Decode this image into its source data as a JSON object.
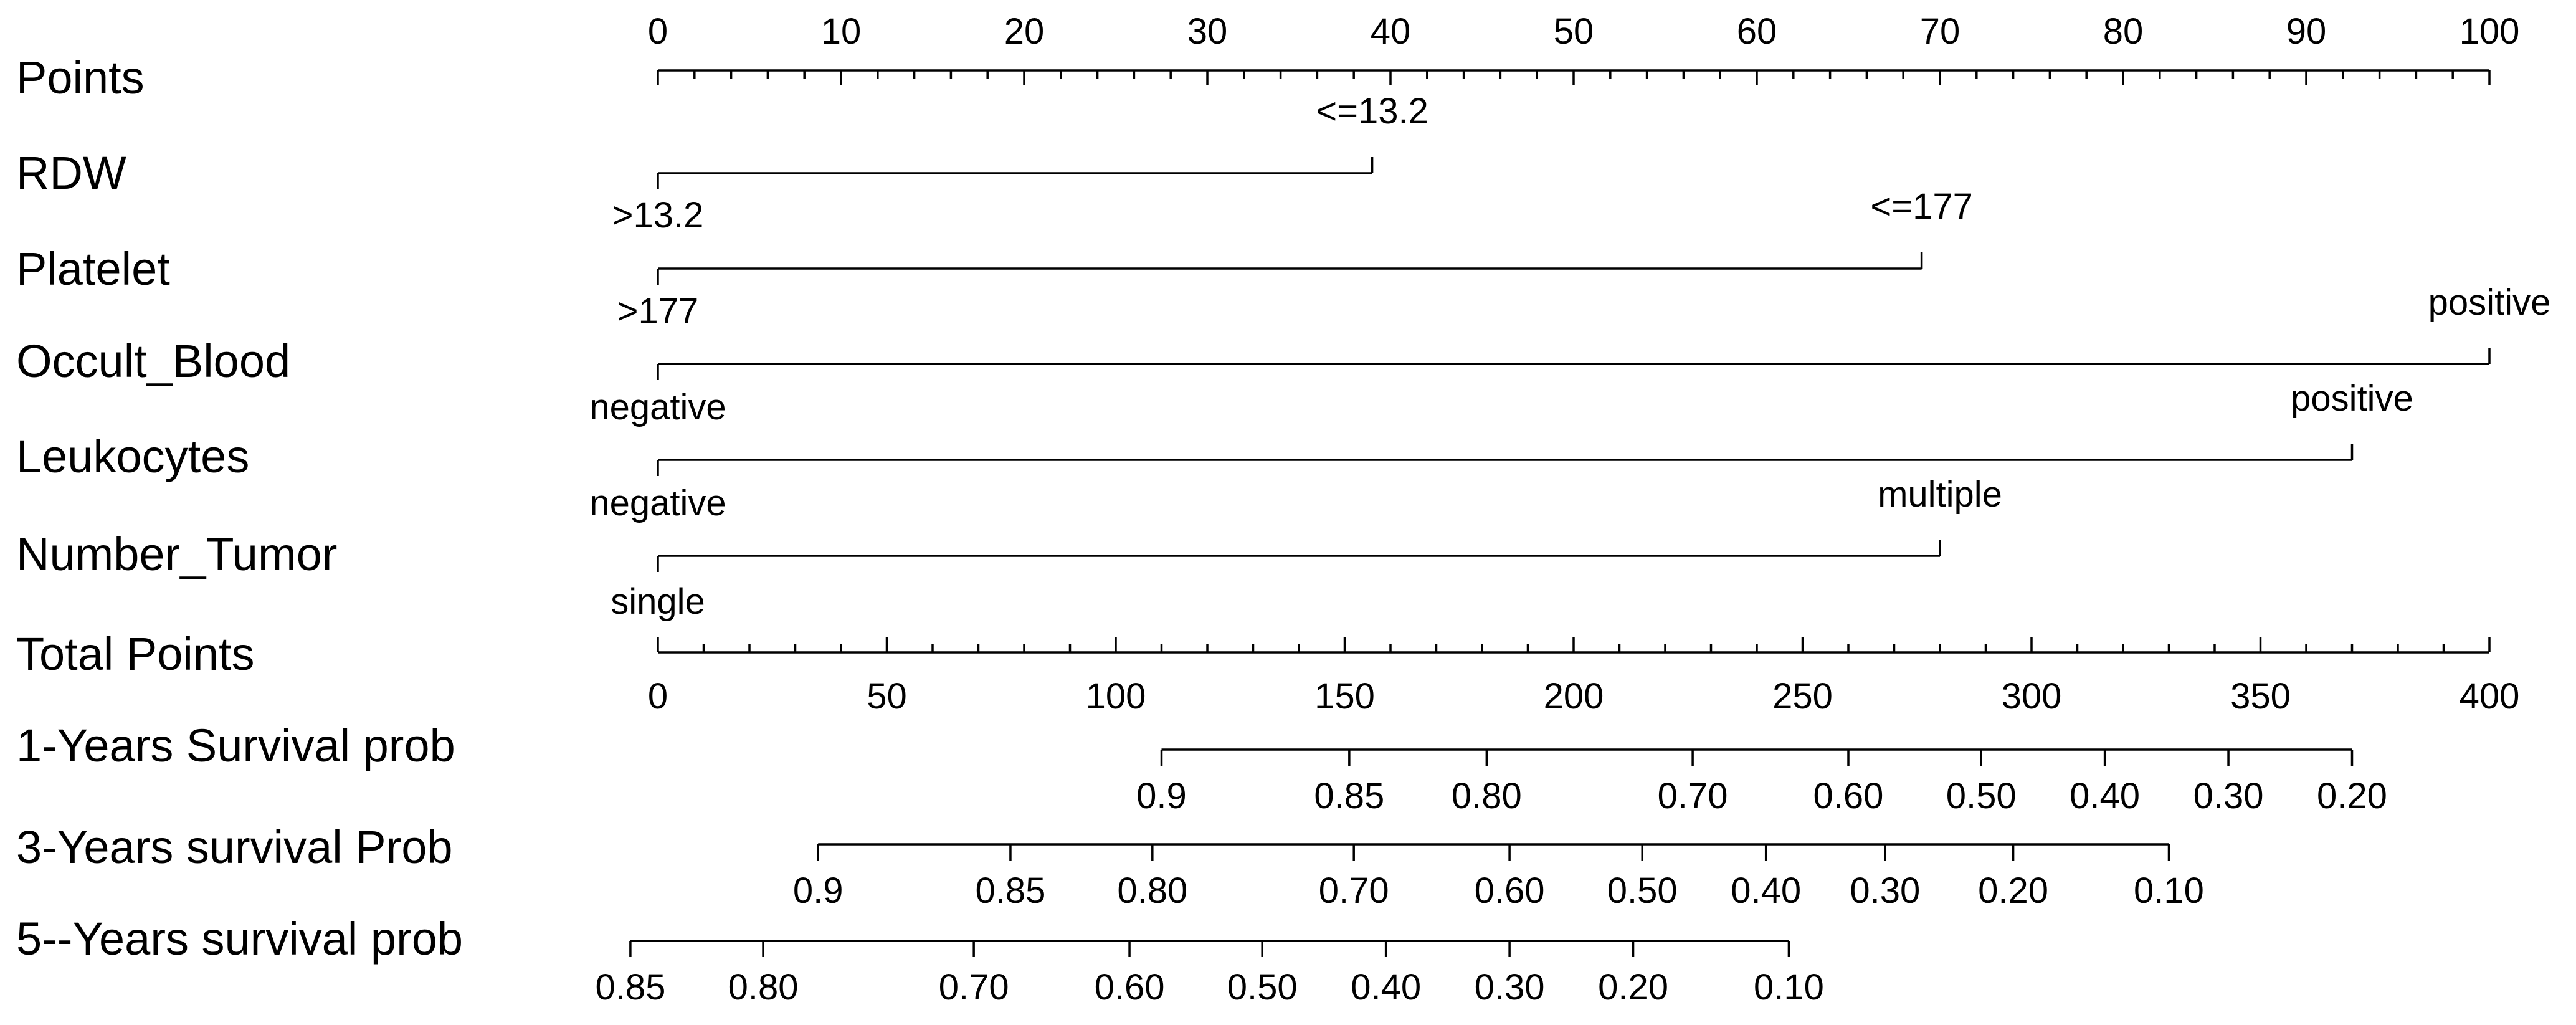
{
  "chart_data": {
    "type": "nomogram",
    "rows": [
      {
        "label": "Points",
        "kind": "scale",
        "major_ticks": [
          0,
          10,
          20,
          30,
          40,
          50,
          60,
          70,
          80,
          90,
          100
        ],
        "minor_step": 2,
        "range": [
          0,
          100
        ]
      },
      {
        "label": "RDW",
        "kind": "categorical",
        "levels": [
          {
            "name": "<=13.2",
            "points": 39
          },
          {
            "name": ">13.2",
            "points": 0
          }
        ]
      },
      {
        "label": "Platelet",
        "kind": "categorical",
        "levels": [
          {
            "name": "<=177",
            "points": 69
          },
          {
            "name": ">177",
            "points": 0
          }
        ]
      },
      {
        "label": "Occult_Blood",
        "kind": "categorical",
        "levels": [
          {
            "name": "positive",
            "points": 100
          },
          {
            "name": "negative",
            "points": 0
          }
        ]
      },
      {
        "label": "Leukocytes",
        "kind": "categorical",
        "levels": [
          {
            "name": "positive",
            "points": 92.5
          },
          {
            "name": "negative",
            "points": 0
          }
        ]
      },
      {
        "label": "Number_Tumor",
        "kind": "categorical",
        "levels": [
          {
            "name": "multiple",
            "points": 70
          },
          {
            "name": "single",
            "points": 0
          }
        ]
      },
      {
        "label": "Total Points",
        "kind": "scale",
        "major_ticks": [
          0,
          50,
          100,
          150,
          200,
          250,
          300,
          350,
          400
        ],
        "minor_step": 10,
        "range": [
          0,
          400
        ]
      },
      {
        "label": "1-Years Survival prob",
        "kind": "probability",
        "ticks": [
          {
            "label": "0.9",
            "total_points": 110
          },
          {
            "label": "0.85",
            "total_points": 151
          },
          {
            "label": "0.80",
            "total_points": 181
          },
          {
            "label": "0.70",
            "total_points": 226
          },
          {
            "label": "0.60",
            "total_points": 260
          },
          {
            "label": "0.50",
            "total_points": 289
          },
          {
            "label": "0.40",
            "total_points": 316
          },
          {
            "label": "0.30",
            "total_points": 343
          },
          {
            "label": "0.20",
            "total_points": 370
          }
        ]
      },
      {
        "label": "3-Years survival Prob",
        "kind": "probability",
        "ticks": [
          {
            "label": "0.9",
            "total_points": 35
          },
          {
            "label": "0.85",
            "total_points": 77
          },
          {
            "label": "0.80",
            "total_points": 108
          },
          {
            "label": "0.70",
            "total_points": 152
          },
          {
            "label": "0.60",
            "total_points": 186
          },
          {
            "label": "0.50",
            "total_points": 215
          },
          {
            "label": "0.40",
            "total_points": 242
          },
          {
            "label": "0.30",
            "total_points": 268
          },
          {
            "label": "0.20",
            "total_points": 296
          },
          {
            "label": "0.10",
            "total_points": 330
          }
        ]
      },
      {
        "label": "5--Years survival prob",
        "kind": "probability",
        "ticks": [
          {
            "label": "0.85",
            "total_points": -6
          },
          {
            "label": "0.80",
            "total_points": 23
          },
          {
            "label": "0.70",
            "total_points": 69
          },
          {
            "label": "0.60",
            "total_points": 103
          },
          {
            "label": "0.50",
            "total_points": 132
          },
          {
            "label": "0.40",
            "total_points": 159
          },
          {
            "label": "0.30",
            "total_points": 186
          },
          {
            "label": "0.20",
            "total_points": 213
          },
          {
            "label": "0.10",
            "total_points": 247
          }
        ]
      }
    ]
  }
}
